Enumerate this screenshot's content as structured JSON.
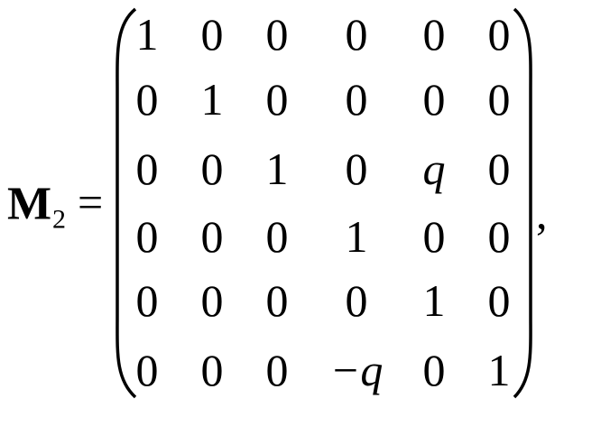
{
  "equation": {
    "lhs": "M",
    "subscript": "2",
    "equals": "=",
    "punctuation": ",",
    "matrix": [
      [
        1,
        0,
        0,
        0,
        0,
        0
      ],
      [
        0,
        1,
        0,
        0,
        0,
        0
      ],
      [
        0,
        0,
        1,
        0,
        "q",
        0
      ],
      [
        0,
        0,
        0,
        1,
        0,
        0
      ],
      [
        0,
        0,
        0,
        0,
        1,
        0
      ],
      [
        0,
        0,
        0,
        "−q",
        0,
        1
      ]
    ]
  }
}
